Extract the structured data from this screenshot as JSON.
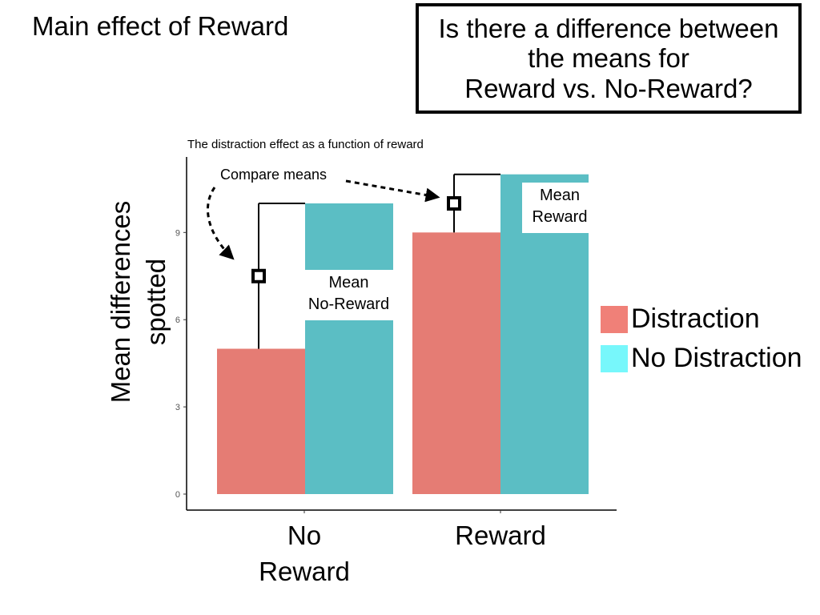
{
  "slide": {
    "title": "Main effect of Reward",
    "question_lines": [
      "Is there a difference between",
      "the means for",
      "Reward vs. No-Reward?"
    ]
  },
  "legend": {
    "items": [
      {
        "label": "Distraction",
        "color": "#F08078"
      },
      {
        "label": "No Distraction",
        "color": "#77F7FB"
      }
    ]
  },
  "annotations": {
    "compare_means": "Compare means",
    "mean_no_reward": [
      "Mean",
      "No-Reward"
    ],
    "mean_reward": [
      "Mean",
      "Reward"
    ]
  },
  "chart_data": {
    "type": "bar",
    "title": "The distraction effect as a function of reward",
    "ylabel": [
      "Mean differences",
      "spotted"
    ],
    "xlabel": "",
    "categories": [
      [
        "No",
        "Reward"
      ],
      [
        "Reward"
      ]
    ],
    "series": [
      {
        "name": "Distraction",
        "color": "#E57C74",
        "values": [
          5,
          9
        ]
      },
      {
        "name": "No Distraction",
        "color": "#5BBEC4",
        "values": [
          10,
          11
        ]
      }
    ],
    "category_means": [
      7.5,
      10
    ],
    "yticks": [
      0,
      3,
      6,
      9
    ],
    "ylim": [
      0,
      11
    ],
    "grid": false,
    "legend_position": "right"
  }
}
